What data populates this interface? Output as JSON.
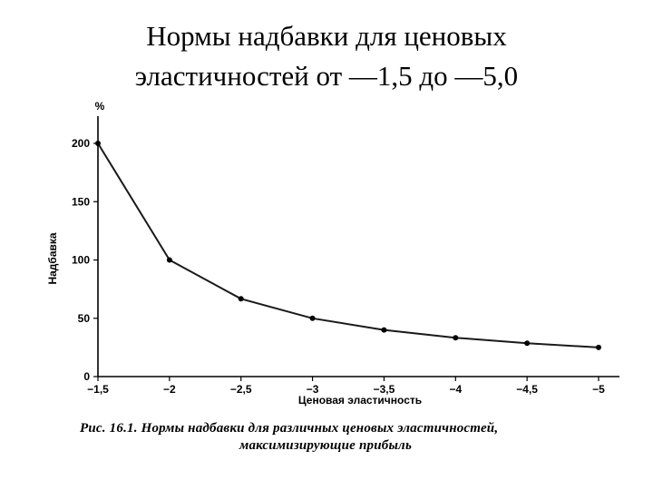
{
  "slide": {
    "title_line1": "Нормы надбавки для ценовых",
    "title_line2": "эластичностей от —1,5 до —5,0"
  },
  "chart_data": {
    "type": "line",
    "x": [
      -1.5,
      -2,
      -2.5,
      -3,
      -3.5,
      -4,
      -4.5,
      -5
    ],
    "x_tick_labels": [
      "−1,5",
      "−2",
      "−2,5",
      "−3",
      "−3,5",
      "−4",
      "−4,5",
      "−5"
    ],
    "series": [
      {
        "values": [
          200,
          100,
          66.7,
          50,
          40,
          33.3,
          28.6,
          25
        ]
      }
    ],
    "y_ticks": [
      0,
      50,
      100,
      150,
      200
    ],
    "y_tick_labels": [
      "0",
      "50",
      "100",
      "150",
      "200"
    ],
    "ylim": [
      0,
      200
    ],
    "xlabel": "Ценовая эластичность",
    "ylabel": "Надбавка",
    "y_unit": "%",
    "grid": false,
    "line_color": "#1a1a1a"
  },
  "caption": {
    "line1": "Рис. 16.1. Нормы надбавки для различных ценовых эластичностей,",
    "line2": "максимизирующие прибыль"
  }
}
